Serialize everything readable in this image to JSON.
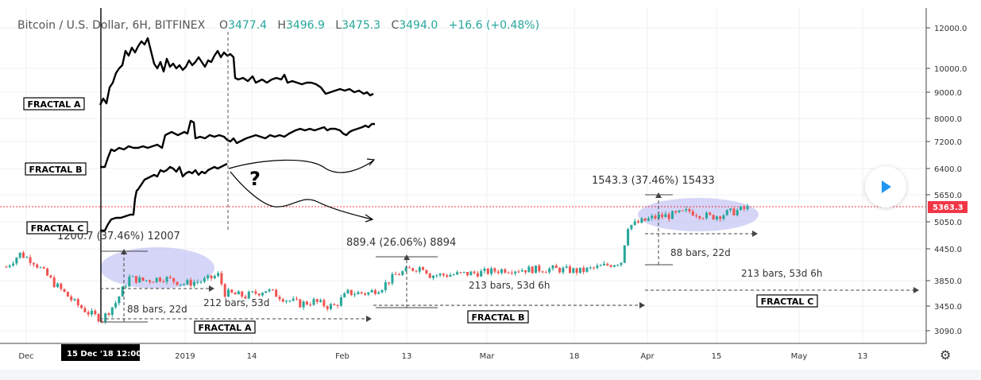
{
  "header": {
    "symbol": "Bitcoin / U.S. Dollar, 6H, BITFINEX",
    "open_key": "O",
    "open": "3477.4",
    "high_key": "H",
    "high": "3496.9",
    "low_key": "L",
    "low": "3475.3",
    "close_key": "C",
    "close": "3494.0",
    "change": "+16.6 (+0.48%)"
  },
  "colors": {
    "up": "#26a69a",
    "down": "#ef5350",
    "price_line": "#f23645",
    "highlight": "#b3b3f0",
    "axis_text": "#333333"
  },
  "chart_data": {
    "type": "candlestick",
    "y_axis": {
      "ticks": [
        "12000.0",
        "10000.0",
        "9000.0",
        "8000.0",
        "7200.0",
        "6400.0",
        "5650.0",
        "5050.0",
        "4450.0",
        "3850.0",
        "3450.0",
        "3090.0"
      ],
      "last_price_label": "5363.3",
      "last_price": 5363.3
    },
    "x_axis": {
      "ticks": [
        "Dec",
        "2019",
        "14",
        "Feb",
        "13",
        "Mar",
        "18",
        "Apr",
        "15",
        "May",
        "13"
      ],
      "crosshair_label": "15 Dec '18   12:00"
    },
    "price_path": [
      [
        0,
        4100
      ],
      [
        4,
        4350
      ],
      [
        8,
        4200
      ],
      [
        14,
        3800
      ],
      [
        20,
        3500
      ],
      [
        24,
        3350
      ],
      [
        28,
        3250
      ],
      [
        32,
        3500
      ],
      [
        36,
        3900
      ],
      [
        40,
        3850
      ],
      [
        46,
        3900
      ],
      [
        52,
        3800
      ],
      [
        58,
        3850
      ],
      [
        62,
        3950
      ],
      [
        64,
        3650
      ],
      [
        70,
        3600
      ],
      [
        76,
        3700
      ],
      [
        82,
        3550
      ],
      [
        86,
        3480
      ],
      [
        90,
        3520
      ],
      [
        94,
        3450
      ],
      [
        96,
        3450
      ],
      [
        100,
        3650
      ],
      [
        106,
        3650
      ],
      [
        110,
        3750
      ],
      [
        114,
        3950
      ],
      [
        118,
        4050
      ],
      [
        122,
        4100
      ],
      [
        124,
        3950
      ],
      [
        128,
        3950
      ],
      [
        134,
        3970
      ],
      [
        140,
        4000
      ],
      [
        146,
        4050
      ],
      [
        152,
        4050
      ],
      [
        160,
        4060
      ],
      [
        168,
        4020
      ],
      [
        174,
        4100
      ],
      [
        180,
        4200
      ],
      [
        182,
        4950
      ],
      [
        186,
        5050
      ],
      [
        190,
        5150
      ],
      [
        196,
        5200
      ],
      [
        200,
        5280
      ],
      [
        206,
        5150
      ],
      [
        212,
        5250
      ],
      [
        218,
        5363
      ]
    ],
    "annotations": [
      {
        "text": "1200.7 (37.46%) 12007"
      },
      {
        "text": "889.4 (26.06%) 8894"
      },
      {
        "text": "1543.3 (37.46%) 15433"
      },
      {
        "text": "88 bars, 22d"
      },
      {
        "text": "212 bars, 53d"
      },
      {
        "text": "213 bars, 53d 6h"
      },
      {
        "text": "88 bars, 22d"
      },
      {
        "text": "213 bars, 53d 6h"
      },
      {
        "text": "?"
      }
    ],
    "fractal_labels": [
      {
        "text": "FRACTAL A"
      },
      {
        "text": "FRACTAL B"
      },
      {
        "text": "FRACTAL C"
      },
      {
        "text": "FRACTAL A"
      },
      {
        "text": "FRACTAL B"
      },
      {
        "text": "FRACTAL C"
      }
    ]
  }
}
